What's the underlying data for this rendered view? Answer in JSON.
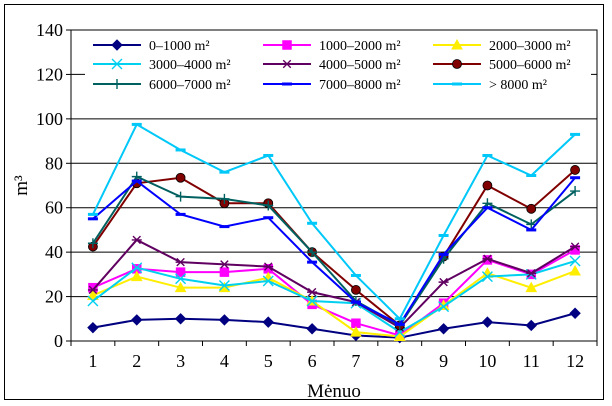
{
  "chart_data": {
    "type": "line",
    "xlabel": "Mėnuo",
    "ylabel": "m³",
    "ylim": [
      0,
      140
    ],
    "yticks": [
      0,
      20,
      40,
      60,
      80,
      100,
      120,
      140
    ],
    "grid": true,
    "legend_position": "top",
    "categories": [
      "1",
      "2",
      "3",
      "4",
      "5",
      "6",
      "7",
      "8",
      "9",
      "10",
      "11",
      "12"
    ],
    "series": [
      {
        "name": "0–1000 m²",
        "color": "#000080",
        "marker": "diamond",
        "values": [
          6,
          9.5,
          10,
          9.5,
          8.5,
          5.5,
          2.5,
          1.5,
          5.5,
          8.5,
          7,
          12.5
        ]
      },
      {
        "name": "1000–2000 m²",
        "color": "#ff00ff",
        "marker": "square",
        "values": [
          24,
          32.5,
          31,
          31,
          32.5,
          16.5,
          8,
          2.5,
          17,
          36.5,
          30,
          41
        ]
      },
      {
        "name": "2000–3000 m²",
        "color": "#ffee00",
        "marker": "triangle",
        "values": [
          20.5,
          29,
          24,
          24,
          28.5,
          18,
          4,
          2,
          16,
          30.5,
          24,
          31.5
        ]
      },
      {
        "name": "3000–4000 m²",
        "color": "#00d0f0",
        "marker": "x",
        "values": [
          18,
          33,
          28,
          25,
          27,
          18,
          17,
          4,
          15.5,
          29,
          30,
          36
        ]
      },
      {
        "name": "4000–5000 m²",
        "color": "#600060",
        "marker": "star",
        "values": [
          23,
          45.5,
          35.5,
          34.5,
          33.5,
          22,
          17.5,
          6,
          26.5,
          37,
          30.5,
          42.5
        ]
      },
      {
        "name": "5000–6000 m²",
        "color": "#800000",
        "marker": "circle",
        "values": [
          42.5,
          71,
          73.5,
          62,
          62,
          40,
          23,
          7,
          38,
          70,
          59.5,
          77
        ]
      },
      {
        "name": "6000–7000 m²",
        "color": "#006060",
        "marker": "plus",
        "values": [
          44,
          74,
          65,
          64,
          61,
          40,
          18,
          7,
          37,
          62,
          52.5,
          67.5
        ]
      },
      {
        "name": "7000–8000 m²",
        "color": "#0000ff",
        "marker": "dash",
        "values": [
          55,
          72,
          57,
          51.5,
          55.5,
          35.5,
          17.5,
          7.5,
          39,
          60,
          50,
          73.5
        ]
      },
      {
        "name": "> 8000 m²",
        "color": "#00c8f8",
        "marker": "dash",
        "values": [
          57,
          97.5,
          86,
          76,
          83.5,
          53,
          29.5,
          10,
          47.5,
          83.5,
          74.5,
          93
        ]
      }
    ]
  }
}
